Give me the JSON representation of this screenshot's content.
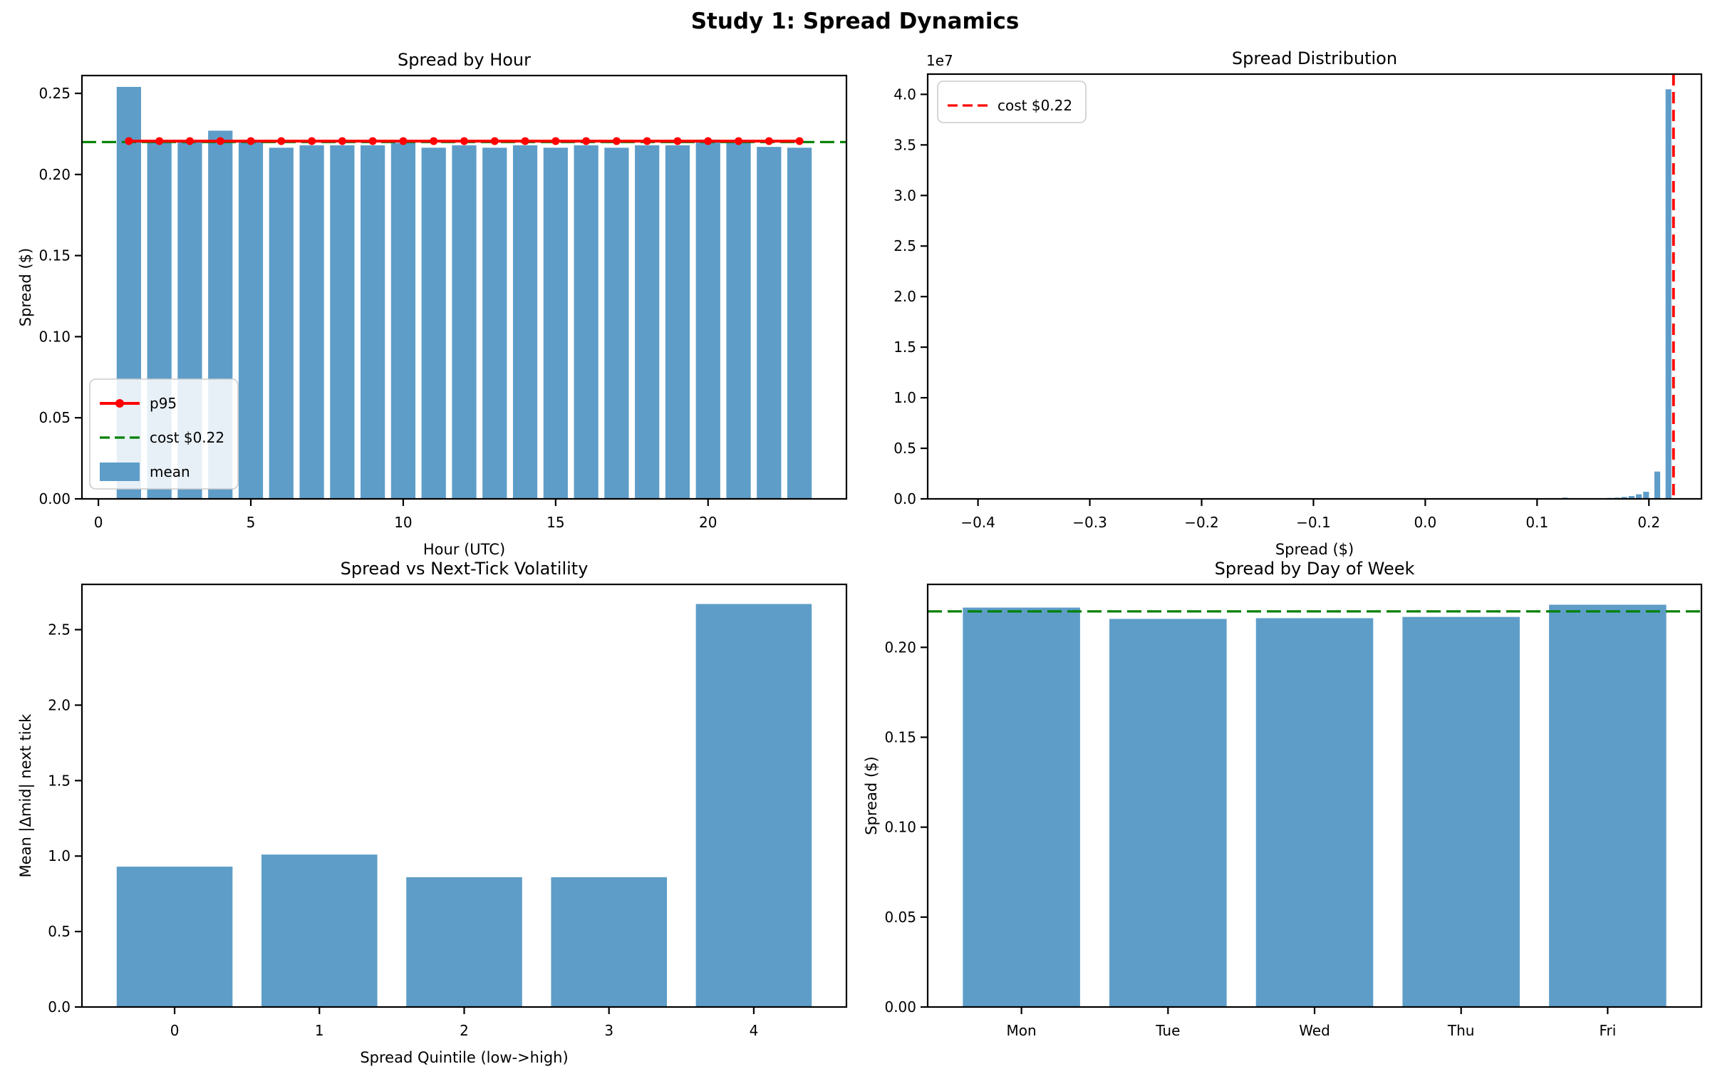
{
  "figure": {
    "title": "Study 1: Spread Dynamics"
  },
  "colors": {
    "bar": "#5e9dc8",
    "p95_line": "#ff0000",
    "cost_line": "#008000",
    "hist_vline": "#ff0000",
    "axis": "#000000",
    "legend_border": "#cccccc",
    "legend_bg": "#ffffff"
  },
  "chart_data": [
    {
      "id": "spread-by-hour",
      "type": "bar",
      "title": "Spread by Hour",
      "xlabel": "Hour (UTC)",
      "ylabel": "Spread ($)",
      "x": [
        1,
        2,
        3,
        4,
        5,
        6,
        7,
        8,
        9,
        10,
        11,
        12,
        13,
        14,
        15,
        16,
        17,
        18,
        19,
        20,
        21,
        22,
        23
      ],
      "values": [
        0.254,
        0.2205,
        0.2205,
        0.227,
        0.2205,
        0.2165,
        0.218,
        0.218,
        0.218,
        0.2195,
        0.2165,
        0.218,
        0.2165,
        0.218,
        0.2165,
        0.218,
        0.2165,
        0.218,
        0.218,
        0.2215,
        0.2195,
        0.217,
        0.2165
      ],
      "bar_width": 0.8,
      "xlim": [
        -0.54,
        24.54
      ],
      "ylim": [
        0,
        0.261
      ],
      "xticks": {
        "values": [
          0,
          5,
          10,
          15,
          20
        ],
        "labels": [
          "0",
          "5",
          "10",
          "15",
          "20"
        ]
      },
      "yticks": {
        "values": [
          0,
          0.05,
          0.1,
          0.15,
          0.2,
          0.25
        ],
        "labels": [
          "0.00",
          "0.05",
          "0.10",
          "0.15",
          "0.20",
          "0.25"
        ]
      },
      "p95": {
        "x": [
          1,
          2,
          3,
          4,
          5,
          6,
          7,
          8,
          9,
          10,
          11,
          12,
          13,
          14,
          15,
          16,
          17,
          18,
          19,
          20,
          21,
          22,
          23
        ],
        "value": 0.2206
      },
      "cost_line": {
        "value": 0.22
      },
      "legend": {
        "position": "lower-left",
        "items": [
          {
            "swatch": "line-marker",
            "color": "#ff0000",
            "label": "p95"
          },
          {
            "swatch": "dash",
            "color": "#008000",
            "label": "cost $0.22"
          },
          {
            "swatch": "patch",
            "color": "#5e9dc8",
            "label": "mean"
          }
        ]
      }
    },
    {
      "id": "spread-distribution",
      "type": "histogram",
      "title": "Spread Distribution",
      "xlabel": "Spread ($)",
      "offset_text": "1e7",
      "y_units": "1e7",
      "bars": [
        {
          "x": 0.125,
          "h": 0.012
        },
        {
          "x": 0.15,
          "h": 0.007
        },
        {
          "x": 0.165,
          "h": 0.009
        },
        {
          "x": 0.1715,
          "h": 0.012
        },
        {
          "x": 0.178,
          "h": 0.019
        },
        {
          "x": 0.1845,
          "h": 0.028
        },
        {
          "x": 0.191,
          "h": 0.045
        },
        {
          "x": 0.1975,
          "h": 0.07
        },
        {
          "x": 0.2075,
          "h": 0.27
        },
        {
          "x": 0.2175,
          "h": 4.05
        }
      ],
      "bar_width": 0.0052,
      "xlim": [
        -0.445,
        0.247
      ],
      "ylim": [
        0,
        4.2
      ],
      "xticks": {
        "values": [
          -0.4,
          -0.3,
          -0.2,
          -0.1,
          0.0,
          0.1,
          0.2
        ],
        "labels": [
          "−0.4",
          "−0.3",
          "−0.2",
          "−0.1",
          "0.0",
          "0.1",
          "0.2"
        ]
      },
      "yticks": {
        "values": [
          0,
          0.5,
          1.0,
          1.5,
          2.0,
          2.5,
          3.0,
          3.5,
          4.0
        ],
        "labels": [
          "0.0",
          "0.5",
          "1.0",
          "1.5",
          "2.0",
          "2.5",
          "3.0",
          "3.5",
          "4.0"
        ]
      },
      "vline": {
        "value": 0.222
      },
      "legend": {
        "position": "upper-left",
        "items": [
          {
            "swatch": "dash",
            "color": "#ff0000",
            "label": "cost $0.22"
          }
        ]
      }
    },
    {
      "id": "spread-vs-next-tick-volatility",
      "type": "bar",
      "title": "Spread vs Next-Tick Volatility",
      "xlabel": "Spread Quintile (low->high)",
      "ylabel": "Mean |Δmid| next tick",
      "categories": [
        "0",
        "1",
        "2",
        "3",
        "4"
      ],
      "values": [
        0.93,
        1.01,
        0.86,
        0.86,
        2.67
      ],
      "bar_width": 0.8,
      "ylim": [
        0,
        2.8
      ],
      "yticks": {
        "values": [
          0,
          0.5,
          1.0,
          1.5,
          2.0,
          2.5
        ],
        "labels": [
          "0.0",
          "0.5",
          "1.0",
          "1.5",
          "2.0",
          "2.5"
        ]
      }
    },
    {
      "id": "spread-by-day-of-week",
      "type": "bar",
      "title": "Spread by Day of Week",
      "xlabel": "",
      "ylabel": "Spread ($)",
      "categories": [
        "Mon",
        "Tue",
        "Wed",
        "Thu",
        "Fri"
      ],
      "values": [
        0.2221,
        0.2158,
        0.2162,
        0.2169,
        0.2237
      ],
      "bar_width": 0.8,
      "ylim": [
        0,
        0.235
      ],
      "yticks": {
        "values": [
          0,
          0.05,
          0.1,
          0.15,
          0.2
        ],
        "labels": [
          "0.00",
          "0.05",
          "0.10",
          "0.15",
          "0.20"
        ]
      },
      "cost_line": {
        "value": 0.22
      }
    }
  ]
}
